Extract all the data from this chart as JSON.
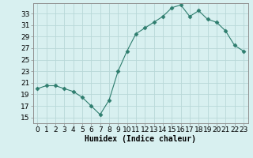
{
  "x": [
    0,
    1,
    2,
    3,
    4,
    5,
    6,
    7,
    8,
    9,
    10,
    11,
    12,
    13,
    14,
    15,
    16,
    17,
    18,
    19,
    20,
    21,
    22,
    23
  ],
  "y": [
    20,
    20.5,
    20.5,
    20,
    19.5,
    18.5,
    17,
    15.5,
    18,
    23,
    26.5,
    29.5,
    30.5,
    31.5,
    32.5,
    34,
    34.5,
    32.5,
    33.5,
    32,
    31.5,
    30,
    27.5,
    26.5
  ],
  "line_color": "#2e7d6e",
  "marker": "D",
  "marker_size": 2.5,
  "bg_color": "#d8f0f0",
  "grid_color": "#b8d8d8",
  "xlabel": "Humidex (Indice chaleur)",
  "yticks": [
    15,
    17,
    19,
    21,
    23,
    25,
    27,
    29,
    31,
    33
  ],
  "ylim": [
    14.0,
    34.8
  ],
  "xlim": [
    -0.5,
    23.5
  ],
  "xticks": [
    0,
    1,
    2,
    3,
    4,
    5,
    6,
    7,
    8,
    9,
    10,
    11,
    12,
    13,
    14,
    15,
    16,
    17,
    18,
    19,
    20,
    21,
    22,
    23
  ],
  "xlabel_fontsize": 7,
  "tick_fontsize": 6.5
}
